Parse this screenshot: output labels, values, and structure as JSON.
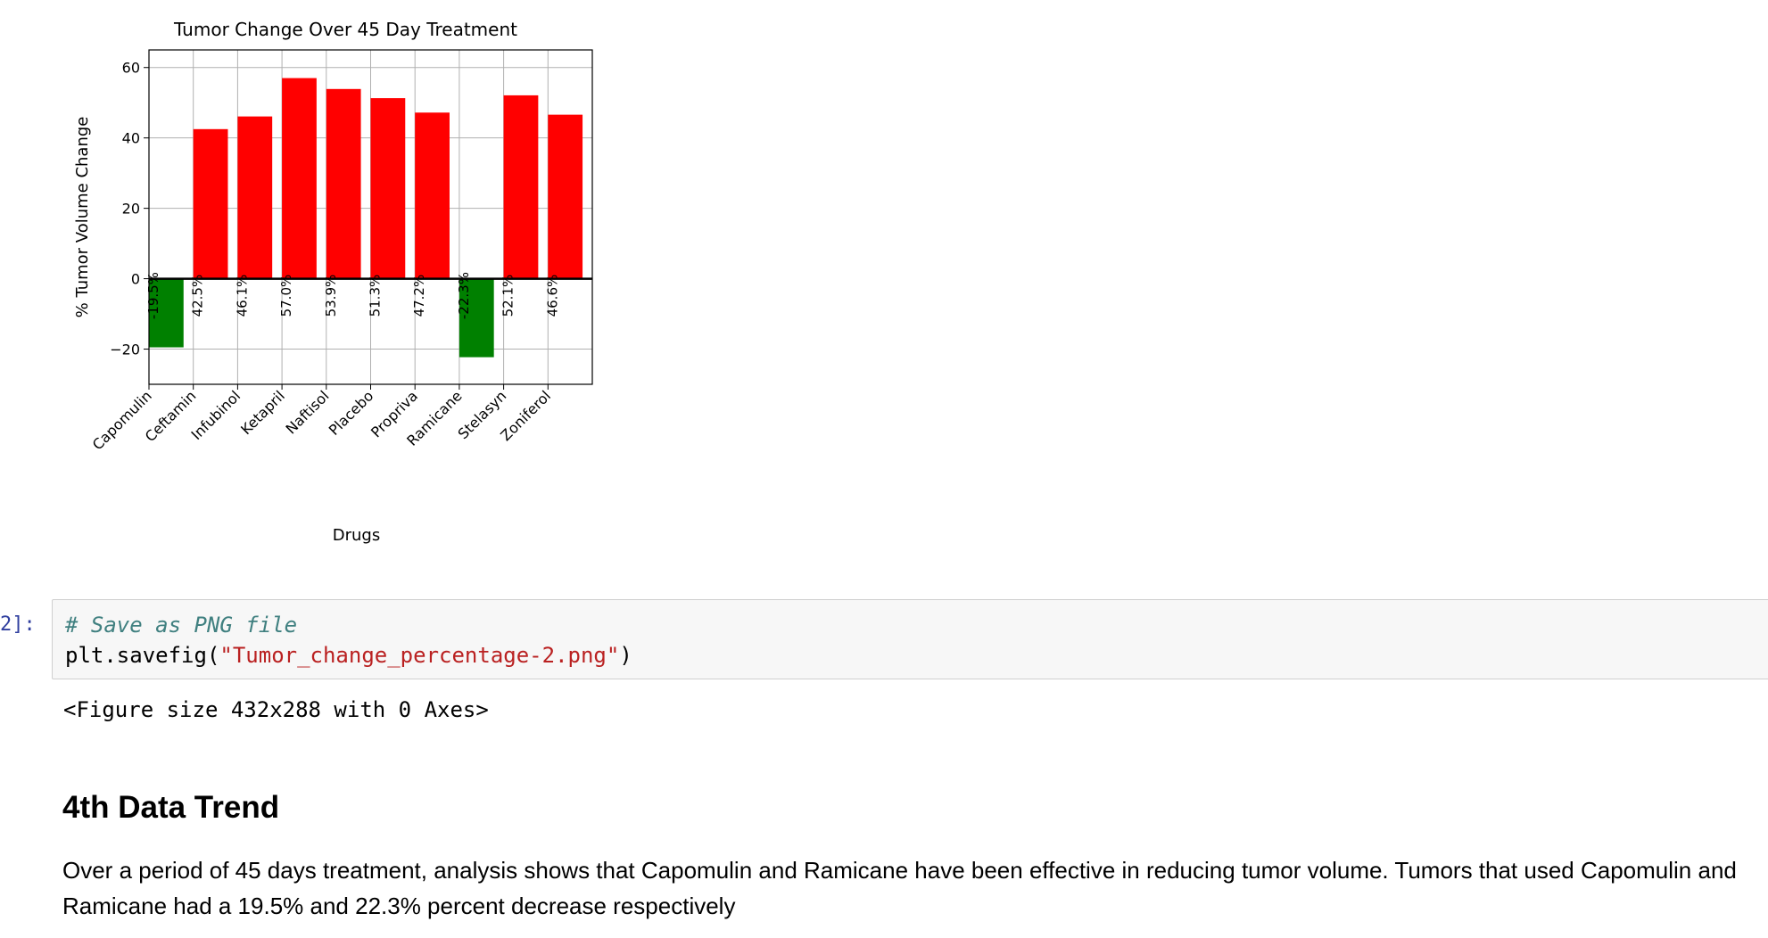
{
  "chart_data": {
    "type": "bar",
    "title": "Tumor Change Over 45 Day Treatment",
    "xlabel": "Drugs",
    "ylabel": "% Tumor Volume Change",
    "ylim": [
      -30,
      65
    ],
    "yticks": [
      60,
      40,
      20,
      0,
      -20
    ],
    "ytick_labels": [
      "60",
      "40",
      "20",
      "0",
      "−20"
    ],
    "grid": true,
    "categories": [
      "Capomulin",
      "Ceftamin",
      "Infubinol",
      "Ketapril",
      "Naftisol",
      "Placebo",
      "Propriva",
      "Ramicane",
      "Stelasyn",
      "Zoniferol"
    ],
    "values": [
      -19.5,
      42.5,
      46.1,
      57.0,
      53.9,
      51.3,
      47.2,
      -22.3,
      52.1,
      46.6
    ],
    "data_labels": [
      "-19.5%",
      "42.5%",
      "46.1%",
      "57.0%",
      "53.9%",
      "51.3%",
      "47.2%",
      "-22.3%",
      "52.1%",
      "46.6%"
    ],
    "colors": {
      "positive": "#ff0000",
      "negative": "#008000"
    }
  },
  "cell": {
    "prompt": "2]:",
    "comment": "# Save as PNG file",
    "code_prefix": "plt.savefig(",
    "code_string": "\"Tumor_change_percentage-2.png\"",
    "code_suffix": ")",
    "output": "<Figure size 432x288 with 0 Axes>"
  },
  "markdown": {
    "heading": "4th Data Trend",
    "paragraph": "Over a period of 45 days treatment, analysis shows that Capomulin and Ramicane have been effective in reducing tumor volume. Tumors that used Capomulin and Ramicane had a 19.5% and 22.3% percent decrease respectively"
  }
}
